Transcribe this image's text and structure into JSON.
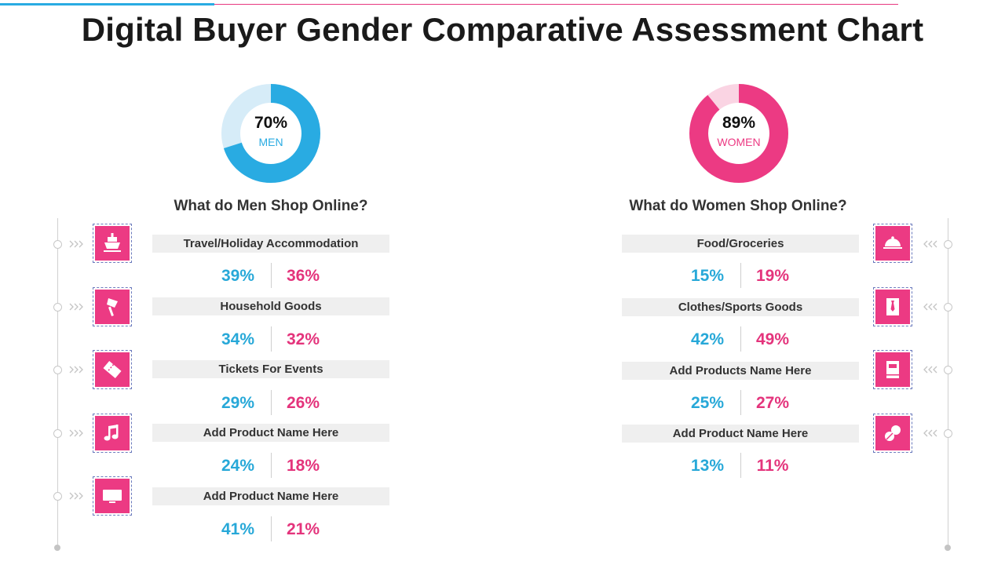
{
  "title": "Digital Buyer Gender Comparative Assessment Chart",
  "colors": {
    "men": "#29abe2",
    "men_light": "#d6ecf8",
    "women": "#ec3a83",
    "women_light": "#fad4e3"
  },
  "chart_data": {
    "type": "table",
    "title": "Digital Buyer Gender Comparative Assessment Chart",
    "donuts": [
      {
        "label": "MEN",
        "value": 70,
        "display": "70%"
      },
      {
        "label": "WOMEN",
        "value": 89,
        "display": "89%"
      }
    ],
    "men_section": {
      "heading": "What do Men Shop Online?",
      "rows": [
        {
          "category": "Travel/Holiday Accommodation",
          "icon": "ship-icon",
          "men": "39%",
          "women": "36%"
        },
        {
          "category": "Household Goods",
          "icon": "brush-icon",
          "men": "34%",
          "women": "32%"
        },
        {
          "category": "Tickets For Events",
          "icon": "ticket-icon",
          "men": "29%",
          "women": "26%"
        },
        {
          "category": "Add Product Name Here",
          "icon": "music-note-icon",
          "men": "24%",
          "women": "18%"
        },
        {
          "category": "Add Product Name Here",
          "icon": "monitor-icon",
          "men": "41%",
          "women": "21%"
        }
      ]
    },
    "women_section": {
      "heading": "What do Women Shop Online?",
      "rows": [
        {
          "category": "Food/Groceries",
          "icon": "food-cloche-icon",
          "men": "15%",
          "women": "19%"
        },
        {
          "category": "Clothes/Sports Goods",
          "icon": "shirt-tie-icon",
          "men": "42%",
          "women": "49%"
        },
        {
          "category": "Add Products Name Here",
          "icon": "book-icon",
          "men": "25%",
          "women": "27%"
        },
        {
          "category": "Add Product Name Here",
          "icon": "pills-icon",
          "men": "13%",
          "women": "11%"
        }
      ]
    }
  }
}
